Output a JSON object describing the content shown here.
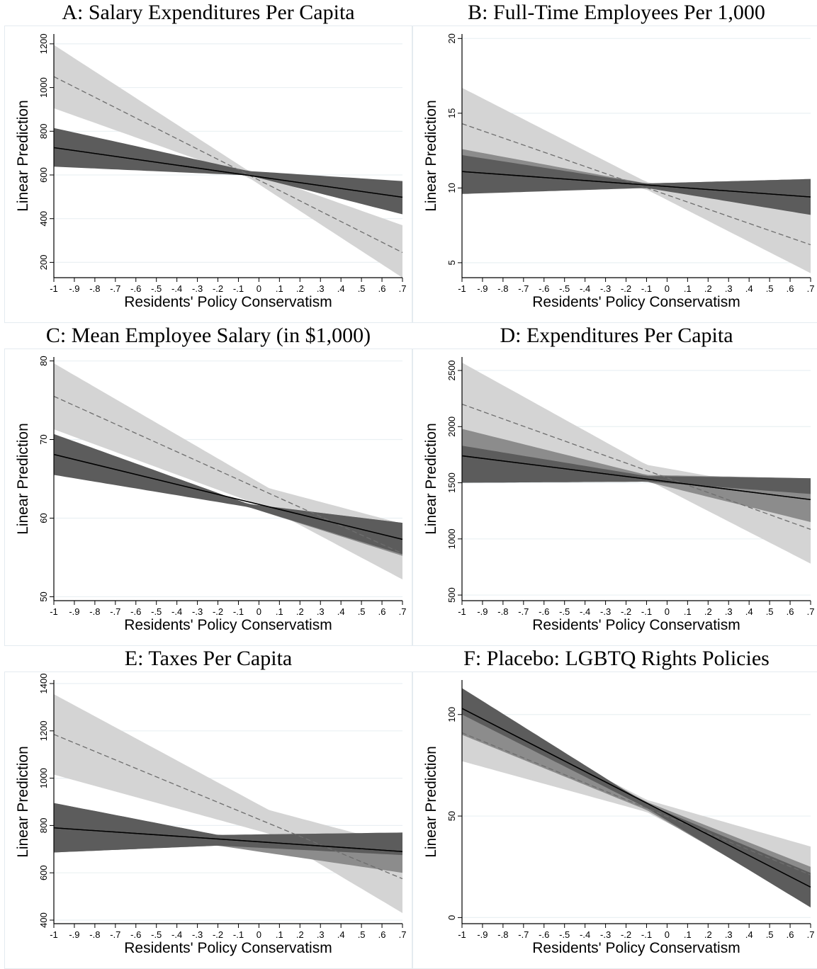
{
  "chart_data": [
    {
      "panel": "A",
      "type": "line",
      "title": "A: Salary Expenditures Per Capita",
      "xlabel": "Residents' Policy Conservatism",
      "ylabel": "Linear Prediction",
      "xlim": [
        -1,
        0.7
      ],
      "ylim": [
        130,
        1245
      ],
      "x_ticks": [
        -1,
        -0.9,
        -0.8,
        -0.7,
        -0.6,
        -0.5,
        -0.4,
        -0.3,
        -0.2,
        -0.1,
        0,
        0.1,
        0.2,
        0.3,
        0.4,
        0.5,
        0.6,
        0.7
      ],
      "x_tick_labels": [
        "-1",
        "-.9",
        "-.8",
        "-.7",
        "-.6",
        "-.5",
        "-.4",
        "-.3",
        "-.2",
        "-.1",
        "0",
        ".1",
        ".2",
        ".3",
        ".4",
        ".5",
        ".6",
        ".7"
      ],
      "y_ticks": [
        200,
        400,
        600,
        800,
        1000,
        1200
      ],
      "y_tick_labels": [
        "200",
        "400",
        "600",
        "800",
        "1000",
        "1200"
      ],
      "grid": true,
      "series": [
        {
          "line": "dashed",
          "color": "#6e6e6e",
          "band_color": "#d4d4d4",
          "x": [
            -1,
            0.7
          ],
          "y": [
            1050,
            245
          ],
          "band": {
            "x": [
              -1,
              -0.05,
              0.7
            ],
            "lower": [
              905,
              588,
              130
            ],
            "upper": [
              1195,
              618,
              370
            ]
          }
        },
        {
          "line": "solid",
          "color": "#000000",
          "band_color": "#8c8c8c",
          "x": [
            -1,
            0.7
          ],
          "y": [
            725,
            498
          ],
          "band": {
            "x": [
              -1,
              -0.05,
              0.7
            ],
            "lower": [
              720,
              604,
              494
            ],
            "upper": [
              730,
              612,
              502
            ]
          }
        },
        {
          "line": "solid",
          "color": "#000000",
          "band_color": "#5c5c5c",
          "x": [
            -1,
            0.7
          ],
          "y": [
            725,
            498
          ],
          "band": {
            "x": [
              -1,
              -0.05,
              0.7
            ],
            "lower": [
              638,
              598,
              420
            ],
            "upper": [
              815,
              618,
              572
            ]
          }
        }
      ]
    },
    {
      "panel": "B",
      "type": "line",
      "title": "B: Full-Time Employees Per 1,000",
      "xlabel": "Residents' Policy Conservatism",
      "ylabel": "Linear Prediction",
      "xlim": [
        -1,
        0.7
      ],
      "ylim": [
        4,
        20.3
      ],
      "x_ticks": [
        -1,
        -0.9,
        -0.8,
        -0.7,
        -0.6,
        -0.5,
        -0.4,
        -0.3,
        -0.2,
        -0.1,
        0,
        0.1,
        0.2,
        0.3,
        0.4,
        0.5,
        0.6,
        0.7
      ],
      "x_tick_labels": [
        "-1",
        "-.9",
        "-.8",
        "-.7",
        "-.6",
        "-.5",
        "-.4",
        "-.3",
        "-.2",
        "-.1",
        "0",
        ".1",
        ".2",
        ".3",
        ".4",
        ".5",
        ".6",
        ".7"
      ],
      "y_ticks": [
        5,
        10,
        15,
        20
      ],
      "y_tick_labels": [
        "5",
        "10",
        "15",
        "20"
      ],
      "grid": true,
      "series": [
        {
          "line": "dashed",
          "color": "#6e6e6e",
          "band_color": "#d4d4d4",
          "x": [
            -1,
            0.7
          ],
          "y": [
            14.3,
            6.2
          ],
          "band": {
            "x": [
              -1,
              -0.1,
              0.7
            ],
            "lower": [
              12.0,
              9.9,
              4.3
            ],
            "upper": [
              16.7,
              10.4,
              8.2
            ]
          }
        },
        {
          "line": "solid",
          "color": "#000000",
          "band_color": "#8c8c8c",
          "x": [
            -1,
            0.7
          ],
          "y": [
            11.1,
            9.4
          ],
          "band": {
            "x": [
              -1,
              -0.1,
              0.7
            ],
            "lower": [
              9.7,
              10.0,
              8.3
            ],
            "upper": [
              12.6,
              10.3,
              10.6
            ]
          }
        },
        {
          "line": "solid",
          "color": "#000000",
          "band_color": "#5c5c5c",
          "x": [
            -1,
            0.7
          ],
          "y": [
            11.1,
            9.4
          ],
          "band": {
            "x": [
              -1,
              -0.1,
              0.7
            ],
            "lower": [
              9.6,
              10.0,
              8.2
            ],
            "upper": [
              12.2,
              10.3,
              10.6
            ]
          }
        }
      ]
    },
    {
      "panel": "C",
      "type": "line",
      "title": "C: Mean Employee Salary (in $1,000)",
      "xlabel": "Residents' Policy Conservatism",
      "ylabel": "Linear Prediction",
      "xlim": [
        -1,
        0.7
      ],
      "ylim": [
        49.5,
        80.5
      ],
      "x_ticks": [
        -1,
        -0.9,
        -0.8,
        -0.7,
        -0.6,
        -0.5,
        -0.4,
        -0.3,
        -0.2,
        -0.1,
        0,
        0.1,
        0.2,
        0.3,
        0.4,
        0.5,
        0.6,
        0.7
      ],
      "x_tick_labels": [
        "-1",
        "-.9",
        "-.8",
        "-.7",
        "-.6",
        "-.5",
        "-.4",
        "-.3",
        "-.2",
        "-.1",
        "0",
        ".1",
        ".2",
        ".3",
        ".4",
        ".5",
        ".6",
        ".7"
      ],
      "y_ticks": [
        50,
        60,
        70,
        80
      ],
      "y_tick_labels": [
        "50",
        "60",
        "70",
        "80"
      ],
      "grid": true,
      "series": [
        {
          "line": "dashed",
          "color": "#6e6e6e",
          "band_color": "#d4d4d4",
          "x": [
            -1,
            0.7
          ],
          "y": [
            75.5,
            55.5
          ],
          "band": {
            "x": [
              -1,
              0.05,
              0.7
            ],
            "lower": [
              71.3,
              61.2,
              52.2
            ],
            "upper": [
              79.7,
              63.8,
              59.3
            ]
          }
        },
        {
          "line": "solid",
          "color": "#000000",
          "band_color": "#8c8c8c",
          "x": [
            -1,
            0.7
          ],
          "y": [
            68.1,
            57.3
          ],
          "band": {
            "x": [
              -1,
              -0.05,
              0.7
            ],
            "lower": [
              68.0,
              61.4,
              55.2
            ],
            "upper": [
              68.2,
              61.8,
              59.4
            ]
          }
        },
        {
          "line": "solid",
          "color": "#000000",
          "band_color": "#5c5c5c",
          "x": [
            -1,
            0.7
          ],
          "y": [
            68.1,
            57.3
          ],
          "band": {
            "x": [
              -1,
              -0.05,
              0.7
            ],
            "lower": [
              65.5,
              61.4,
              55.4
            ],
            "upper": [
              70.7,
              61.8,
              59.4
            ]
          }
        }
      ]
    },
    {
      "panel": "D",
      "type": "line",
      "title": "D: Expenditures Per Capita",
      "xlabel": "Residents' Policy Conservatism",
      "ylabel": "Linear Prediction",
      "xlim": [
        -1,
        0.7
      ],
      "ylim": [
        450,
        2620
      ],
      "x_ticks": [
        -1,
        -0.9,
        -0.8,
        -0.7,
        -0.6,
        -0.5,
        -0.4,
        -0.3,
        -0.2,
        -0.1,
        0,
        0.1,
        0.2,
        0.3,
        0.4,
        0.5,
        0.6,
        0.7
      ],
      "x_tick_labels": [
        "-1",
        "-.9",
        "-.8",
        "-.7",
        "-.6",
        "-.5",
        "-.4",
        "-.3",
        "-.2",
        "-.1",
        "0",
        ".1",
        ".2",
        ".3",
        ".4",
        ".5",
        ".6",
        ".7"
      ],
      "y_ticks": [
        500,
        1000,
        1500,
        2000,
        2500
      ],
      "y_tick_labels": [
        "500",
        "1000",
        "1500",
        "2000",
        "2500"
      ],
      "grid": true,
      "series": [
        {
          "line": "dashed",
          "color": "#6e6e6e",
          "band_color": "#d4d4d4",
          "x": [
            -1,
            0.7
          ],
          "y": [
            2200,
            1085
          ],
          "band": {
            "x": [
              -1,
              -0.1,
              0.7
            ],
            "lower": [
              1840,
              1530,
              780
            ],
            "upper": [
              2570,
              1660,
              1400
            ]
          }
        },
        {
          "line": "solid",
          "color": "#000000",
          "band_color": "#8c8c8c",
          "x": [
            -1,
            0.7
          ],
          "y": [
            1740,
            1350
          ],
          "band": {
            "x": [
              -1,
              -0.1,
              0.7
            ],
            "lower": [
              1500,
              1510,
              1150
            ],
            "upper": [
              1980,
              1570,
              1540
            ]
          }
        },
        {
          "line": "solid",
          "color": "#000000",
          "band_color": "#5c5c5c",
          "x": [
            -1,
            0.7
          ],
          "y": [
            1740,
            1350
          ],
          "band": {
            "x": [
              -1,
              -0.1,
              0.7
            ],
            "lower": [
              1500,
              1510,
              1400
            ],
            "upper": [
              1830,
              1560,
              1540
            ]
          }
        }
      ]
    },
    {
      "panel": "E",
      "type": "line",
      "title": "E: Taxes Per Capita",
      "xlabel": "Residents' Policy Conservatism",
      "ylabel": "Linear Prediction",
      "xlim": [
        -1,
        0.7
      ],
      "ylim": [
        385,
        1415
      ],
      "x_ticks": [
        -1,
        -0.9,
        -0.8,
        -0.7,
        -0.6,
        -0.5,
        -0.4,
        -0.3,
        -0.2,
        -0.1,
        0,
        0.1,
        0.2,
        0.3,
        0.4,
        0.5,
        0.6,
        0.7
      ],
      "x_tick_labels": [
        "-1",
        "-.9",
        "-.8",
        "-.7",
        "-.6",
        "-.5",
        "-.4",
        "-.3",
        "-.2",
        "-.1",
        "0",
        ".1",
        ".2",
        ".3",
        ".4",
        ".5",
        ".6",
        ".7"
      ],
      "y_ticks": [
        400,
        600,
        800,
        1000,
        1200,
        1400
      ],
      "y_tick_labels": [
        "400",
        "600",
        "800",
        "1000",
        "1200",
        "1400"
      ],
      "grid": true,
      "series": [
        {
          "line": "dashed",
          "color": "#6e6e6e",
          "band_color": "#d4d4d4",
          "x": [
            -1,
            0.7
          ],
          "y": [
            1185,
            575
          ],
          "band": {
            "x": [
              -1,
              0.05,
              0.7
            ],
            "lower": [
              1015,
              765,
              430
            ],
            "upper": [
              1355,
              865,
              715
            ]
          }
        },
        {
          "line": "solid",
          "color": "#000000",
          "band_color": "#8c8c8c",
          "x": [
            -1,
            0.7
          ],
          "y": [
            790,
            690
          ],
          "band": {
            "x": [
              -1,
              -0.2,
              0.7
            ],
            "lower": [
              686,
              715,
              600
            ],
            "upper": [
              895,
              760,
              770
            ]
          }
        },
        {
          "line": "solid",
          "color": "#000000",
          "band_color": "#5c5c5c",
          "x": [
            -1,
            0.7
          ],
          "y": [
            790,
            690
          ],
          "band": {
            "x": [
              -1,
              -0.2,
              0.7
            ],
            "lower": [
              686,
              715,
              675
            ],
            "upper": [
              895,
              760,
              770
            ]
          }
        }
      ]
    },
    {
      "panel": "F",
      "type": "line",
      "title": "F: Placebo: LGBTQ Rights Policies",
      "xlabel": "Residents' Policy Conservatism",
      "ylabel": "Linear Prediction",
      "xlim": [
        -1,
        0.7
      ],
      "ylim": [
        -3,
        117
      ],
      "x_ticks": [
        -1,
        -0.9,
        -0.8,
        -0.7,
        -0.6,
        -0.5,
        -0.4,
        -0.3,
        -0.2,
        -0.1,
        0,
        0.1,
        0.2,
        0.3,
        0.4,
        0.5,
        0.6,
        0.7
      ],
      "x_tick_labels": [
        "-1",
        "-.9",
        "-.8",
        "-.7",
        "-.6",
        "-.5",
        "-.4",
        "-.3",
        "-.2",
        "-.1",
        "0",
        ".1",
        ".2",
        ".3",
        ".4",
        ".5",
        ".6",
        ".7"
      ],
      "y_ticks": [
        0,
        50,
        100
      ],
      "y_tick_labels": [
        "0",
        "50",
        "100"
      ],
      "grid": true,
      "series": [
        {
          "line": "dashed",
          "color": "#6e6e6e",
          "band_color": "#d4d4d4",
          "x": [
            -1,
            0.7
          ],
          "y": [
            91,
            21
          ],
          "band": {
            "x": [
              -1,
              -0.1,
              0.7
            ],
            "lower": [
              77,
              52,
              10
            ],
            "upper": [
              105,
              58,
              35
            ]
          }
        },
        {
          "line": "solid",
          "color": "#000000",
          "band_color": "#8c8c8c",
          "x": [
            -1,
            0.7
          ],
          "y": [
            103,
            15
          ],
          "band": {
            "x": [
              -1,
              -0.1,
              0.7
            ],
            "lower": [
              90,
              53,
              6
            ],
            "upper": [
              106,
              57,
              25
            ]
          }
        },
        {
          "line": "solid",
          "color": "#000000",
          "band_color": "#5c5c5c",
          "x": [
            -1,
            0.7
          ],
          "y": [
            103,
            15
          ],
          "band": {
            "x": [
              -1,
              -0.1,
              0.7
            ],
            "lower": [
              100,
              54,
              5
            ],
            "upper": [
              113,
              56,
              22
            ]
          }
        }
      ]
    }
  ]
}
